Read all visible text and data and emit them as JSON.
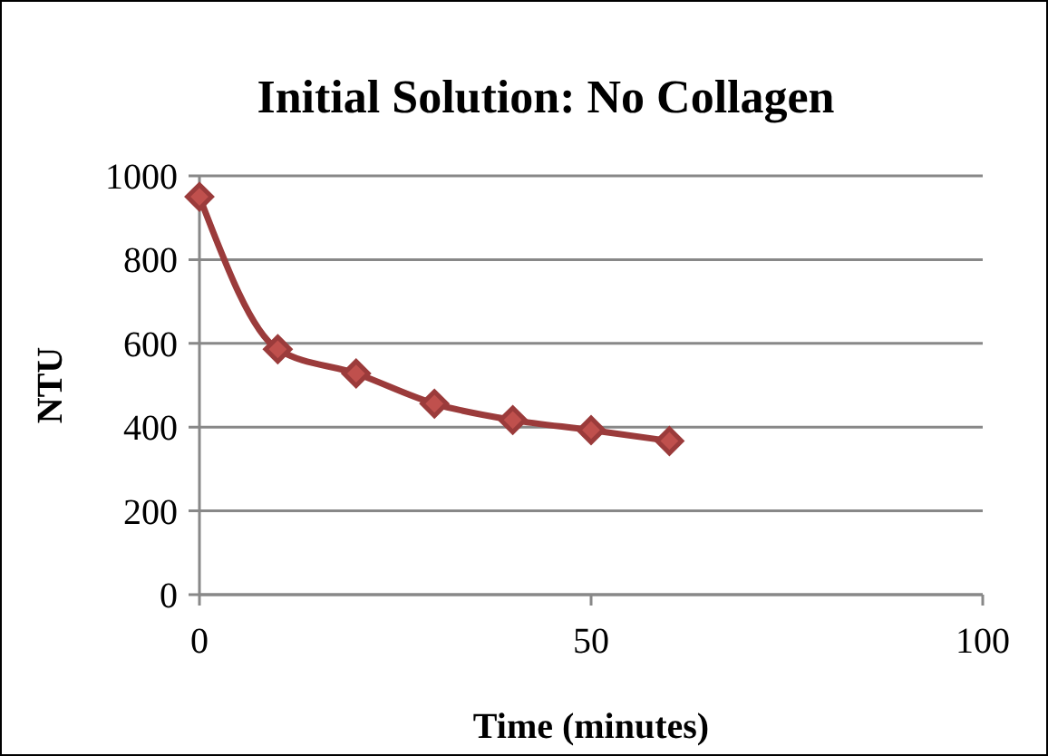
{
  "chart_data": {
    "type": "line",
    "title": "Initial Solution: No Collagen",
    "xlabel": "Time (minutes)",
    "ylabel": "NTU",
    "x": [
      0,
      10,
      20,
      30,
      40,
      50,
      60
    ],
    "series": [
      {
        "color": "#9b3b3b",
        "values": [
          950,
          586,
          528,
          456,
          417,
          393,
          367
        ]
      }
    ],
    "xlim": [
      0,
      100
    ],
    "xticks": [
      0,
      50,
      100
    ],
    "ylim": [
      0,
      1000
    ],
    "yticks": [
      0,
      200,
      400,
      600,
      800,
      1000
    ],
    "grid": "y",
    "marker": "diamond",
    "line_style": "solid"
  }
}
